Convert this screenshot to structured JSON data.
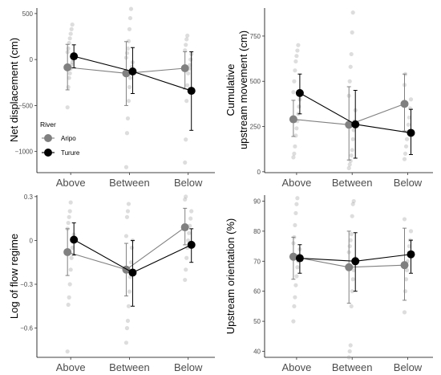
{
  "chart_data": [
    {
      "type": "scatter",
      "panel": "top-left",
      "xlabel": "",
      "ylabel": "Net displacement (cm)",
      "categories": [
        "Above",
        "Between",
        "Below"
      ],
      "ylim": [
        -1230,
        560
      ],
      "yticks": [
        500,
        0,
        -500,
        -1000
      ],
      "series": [
        {
          "name": "Aripo",
          "color": "#808080",
          "means": [
            -85,
            -150,
            -95
          ],
          "lower": [
            -330,
            -500,
            -320
          ],
          "upper": [
            165,
            195,
            85
          ]
        },
        {
          "name": "Turure",
          "color": "#000000",
          "means": [
            35,
            -130,
            -340
          ],
          "lower": [
            -90,
            -370,
            -770
          ],
          "upper": [
            160,
            130,
            85
          ]
        }
      ],
      "points": [
        {
          "x": 0,
          "values": [
            -520,
            -300,
            -200,
            -150,
            -100,
            -60,
            -30,
            0,
            30,
            80,
            120,
            180,
            230,
            280,
            330,
            380
          ]
        },
        {
          "x": 1,
          "values": [
            -1170,
            -800,
            -640,
            -450,
            -300,
            -200,
            -120,
            -80,
            -30,
            20,
            70,
            120,
            200,
            330,
            450,
            550
          ]
        },
        {
          "x": 2,
          "values": [
            -1120,
            -870,
            -450,
            -280,
            -150,
            -100,
            -60,
            0,
            60,
            100,
            160,
            220,
            260
          ]
        }
      ],
      "legend": {
        "title": "River",
        "entries": [
          "Aripo",
          "Turure"
        ],
        "position": "left"
      }
    },
    {
      "type": "scatter",
      "panel": "top-right",
      "xlabel": "",
      "ylabel": "Cumulative upstream movement (cm)",
      "ylabel_lines": [
        "Cumulative",
        "upstream movement (cm)"
      ],
      "categories": [
        "Above",
        "Between",
        "Below"
      ],
      "ylim": [
        -5,
        905
      ],
      "yticks": [
        750,
        500,
        250,
        0
      ],
      "series": [
        {
          "name": "Aripo",
          "color": "#808080",
          "means": [
            290,
            260,
            375
          ],
          "lower": [
            195,
            65,
            225
          ],
          "upper": [
            395,
            470,
            540
          ]
        },
        {
          "name": "Turure",
          "color": "#000000",
          "means": [
            435,
            262,
            215
          ],
          "lower": [
            320,
            75,
            95
          ],
          "upper": [
            540,
            450,
            345
          ]
        }
      ],
      "points": [
        {
          "x": 0,
          "values": [
            80,
            100,
            140,
            200,
            240,
            280,
            320,
            360,
            400,
            440,
            500,
            560,
            610,
            640,
            670,
            700
          ]
        },
        {
          "x": 1,
          "values": [
            20,
            40,
            60,
            90,
            120,
            180,
            230,
            280,
            340,
            420,
            500,
            580,
            650,
            770,
            880
          ]
        },
        {
          "x": 2,
          "values": [
            70,
            100,
            140,
            180,
            220,
            260,
            300,
            350,
            400,
            480,
            540
          ]
        }
      ]
    },
    {
      "type": "scatter",
      "panel": "bottom-left",
      "xlabel": "",
      "ylabel": "Log of flow regime",
      "categories": [
        "Above",
        "Between",
        "Below"
      ],
      "ylim": [
        -0.8,
        0.31
      ],
      "yticks": [
        0.3,
        0.0,
        -0.3,
        -0.6
      ],
      "series": [
        {
          "name": "Aripo",
          "color": "#808080",
          "means": [
            -0.08,
            -0.2,
            0.09
          ],
          "lower": [
            -0.24,
            -0.38,
            -0.03
          ],
          "upper": [
            0.08,
            -0.02,
            0.22
          ]
        },
        {
          "name": "Turure",
          "color": "#000000",
          "means": [
            0.005,
            -0.22,
            -0.03
          ],
          "lower": [
            -0.1,
            -0.45,
            -0.15
          ],
          "upper": [
            0.12,
            0.0,
            0.08
          ]
        }
      ],
      "points": [
        {
          "x": 0,
          "values": [
            -0.76,
            -0.44,
            -0.39,
            -0.3,
            -0.2,
            -0.12,
            -0.05,
            0.0,
            0.04,
            0.08,
            0.12,
            0.16,
            0.2,
            0.26
          ]
        },
        {
          "x": 1,
          "values": [
            -0.7,
            -0.6,
            -0.55,
            -0.45,
            -0.35,
            -0.25,
            -0.15,
            -0.05,
            0.0,
            0.03,
            0.16,
            0.2,
            0.25
          ]
        },
        {
          "x": 2,
          "values": [
            -0.27,
            -0.2,
            -0.12,
            -0.05,
            0.0,
            0.05,
            0.1,
            0.15,
            0.2,
            0.28,
            0.3
          ]
        }
      ]
    },
    {
      "type": "scatter",
      "panel": "bottom-right",
      "xlabel": "",
      "ylabel": "Upstream orientation (%)",
      "categories": [
        "Above",
        "Between",
        "Below"
      ],
      "ylim": [
        38,
        92
      ],
      "yticks": [
        90,
        80,
        70,
        60,
        50,
        40
      ],
      "series": [
        {
          "name": "Aripo",
          "color": "#808080",
          "means": [
            71.5,
            68,
            68.7
          ],
          "lower": [
            64,
            56,
            57
          ],
          "upper": [
            78,
            80,
            81
          ]
        },
        {
          "name": "Turure",
          "color": "#000000",
          "means": [
            71,
            70,
            72.3
          ],
          "lower": [
            66,
            60,
            66
          ],
          "upper": [
            75.5,
            79.5,
            77
          ]
        }
      ],
      "points": [
        {
          "x": 0,
          "values": [
            50,
            55,
            58,
            62,
            65,
            68,
            70,
            72,
            74,
            76,
            78,
            82,
            86,
            89,
            91
          ]
        },
        {
          "x": 1,
          "values": [
            38,
            40,
            42,
            55,
            60,
            64,
            67,
            69,
            71,
            73,
            75,
            77,
            79,
            85,
            89,
            90
          ]
        },
        {
          "x": 2,
          "values": [
            53,
            60,
            64,
            67,
            70,
            72,
            75,
            77,
            80,
            84
          ]
        }
      ]
    }
  ]
}
